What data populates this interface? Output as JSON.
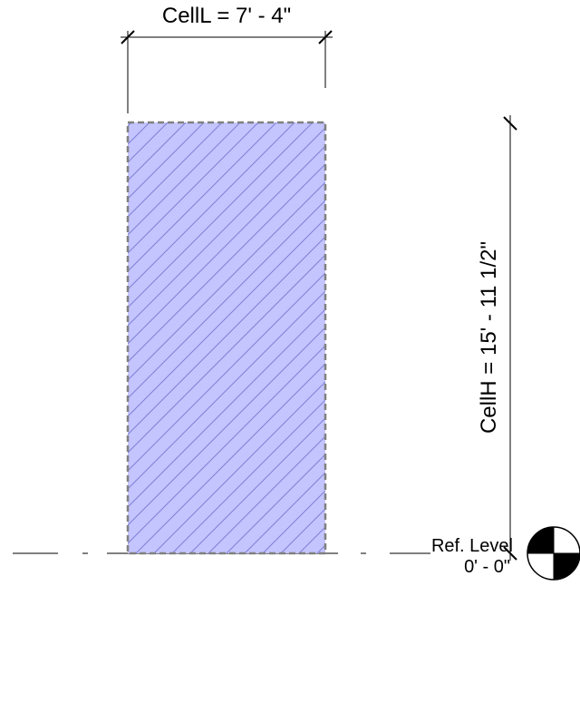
{
  "dimensions": {
    "width_label": "CellL = 7' - 4\"",
    "height_label": "CellH = 15' - 11 1/2\""
  },
  "level": {
    "name": "Ref. Level",
    "elevation": "0' - 0\""
  },
  "colors": {
    "cell_fill": "#c4c4ff",
    "hatch": "#7f7fd4",
    "cell_border": "#808080",
    "line": "#000000"
  }
}
